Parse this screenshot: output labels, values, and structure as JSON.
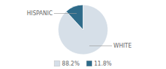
{
  "chart_data": {
    "type": "pie",
    "categories": [
      "WHITE",
      "HISPANIC"
    ],
    "values": [
      88.2,
      11.8
    ],
    "value_labels": [
      "88.2%",
      "11.8%"
    ],
    "colors": [
      "#d6dfe8",
      "#2e6b8a"
    ],
    "legend": "bottom"
  }
}
